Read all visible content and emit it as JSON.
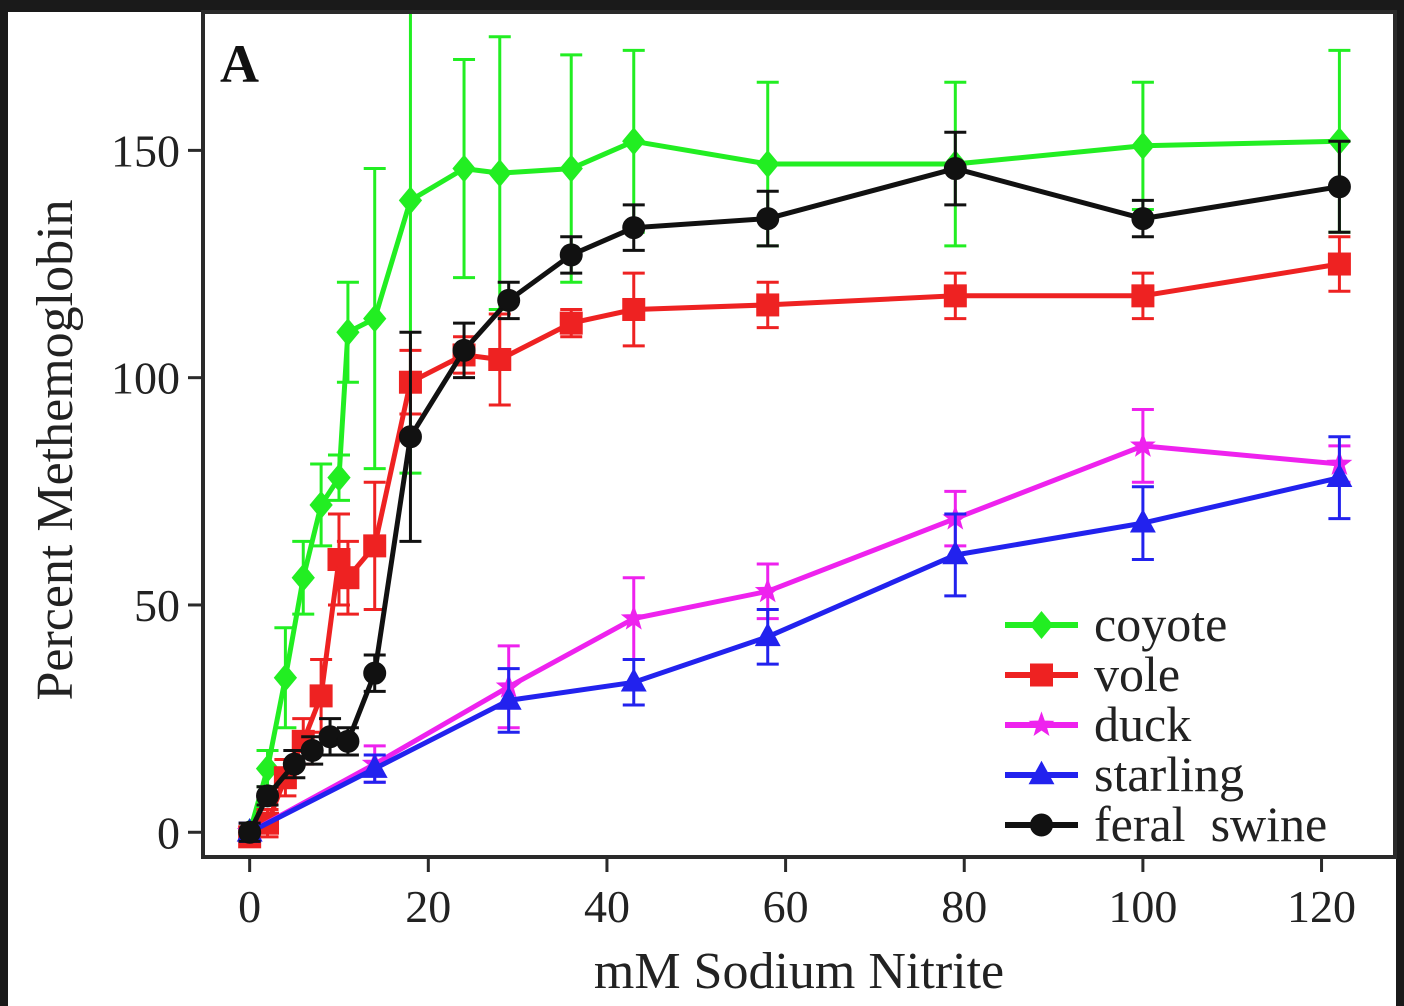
{
  "chart_data": {
    "type": "line",
    "panel_label": "A",
    "xlabel": "mM Sodium Nitrite",
    "ylabel": "Percent Methemoglobin",
    "xlim": [
      -5,
      128
    ],
    "ylim": [
      -5,
      180
    ],
    "xticks": [
      0,
      20,
      40,
      60,
      80,
      100,
      120
    ],
    "yticks": [
      0,
      50,
      100,
      150
    ],
    "grid": false,
    "legend_position": "bottom-right",
    "series": [
      {
        "name": "coyote",
        "color": "#22ee22",
        "marker": "diamond",
        "points": [
          {
            "x": 0,
            "y": 0,
            "err": 2
          },
          {
            "x": 2,
            "y": 14,
            "err": 4
          },
          {
            "x": 4,
            "y": 34,
            "err": 11
          },
          {
            "x": 6,
            "y": 56,
            "err": 8
          },
          {
            "x": 8,
            "y": 72,
            "err": 9
          },
          {
            "x": 10,
            "y": 78,
            "err": 5
          },
          {
            "x": 11,
            "y": 110,
            "err": 11
          },
          {
            "x": 14,
            "y": 113,
            "err": 33
          },
          {
            "x": 18,
            "y": 139,
            "err": 60
          },
          {
            "x": 24,
            "y": 146,
            "err": 24
          },
          {
            "x": 28,
            "y": 145,
            "err": 30
          },
          {
            "x": 36,
            "y": 146,
            "err": 25
          },
          {
            "x": 43,
            "y": 152,
            "err": 20
          },
          {
            "x": 58,
            "y": 147,
            "err": 18
          },
          {
            "x": 79,
            "y": 147,
            "err": 18
          },
          {
            "x": 100,
            "y": 151,
            "err": 14
          },
          {
            "x": 122,
            "y": 152,
            "err": 20
          }
        ]
      },
      {
        "name": "vole",
        "color": "#ee2222",
        "marker": "square",
        "points": [
          {
            "x": 0,
            "y": -1,
            "err": 2
          },
          {
            "x": 2,
            "y": 2,
            "err": 3
          },
          {
            "x": 4,
            "y": 12,
            "err": 4
          },
          {
            "x": 6,
            "y": 20,
            "err": 5
          },
          {
            "x": 8,
            "y": 30,
            "err": 8
          },
          {
            "x": 10,
            "y": 60,
            "err": 10
          },
          {
            "x": 11,
            "y": 56,
            "err": 8
          },
          {
            "x": 14,
            "y": 63,
            "err": 14
          },
          {
            "x": 18,
            "y": 99,
            "err": 7
          },
          {
            "x": 24,
            "y": 105,
            "err": 4
          },
          {
            "x": 28,
            "y": 104,
            "err": 10
          },
          {
            "x": 36,
            "y": 112,
            "err": 3
          },
          {
            "x": 43,
            "y": 115,
            "err": 8
          },
          {
            "x": 58,
            "y": 116,
            "err": 5
          },
          {
            "x": 79,
            "y": 118,
            "err": 5
          },
          {
            "x": 100,
            "y": 118,
            "err": 5
          },
          {
            "x": 122,
            "y": 125,
            "err": 6
          }
        ]
      },
      {
        "name": "duck",
        "color": "#ee22ee",
        "marker": "star",
        "points": [
          {
            "x": 0,
            "y": 0,
            "err": 2
          },
          {
            "x": 14,
            "y": 15,
            "err": 4
          },
          {
            "x": 29,
            "y": 32,
            "err": 9
          },
          {
            "x": 43,
            "y": 47,
            "err": 9
          },
          {
            "x": 58,
            "y": 53,
            "err": 6
          },
          {
            "x": 79,
            "y": 69,
            "err": 6
          },
          {
            "x": 100,
            "y": 85,
            "err": 8
          },
          {
            "x": 122,
            "y": 81,
            "err": 4
          }
        ]
      },
      {
        "name": "starling",
        "color": "#2222ee",
        "marker": "triangle",
        "points": [
          {
            "x": 0,
            "y": 0,
            "err": 2
          },
          {
            "x": 14,
            "y": 14,
            "err": 3
          },
          {
            "x": 29,
            "y": 29,
            "err": 7
          },
          {
            "x": 43,
            "y": 33,
            "err": 5
          },
          {
            "x": 58,
            "y": 43,
            "err": 6
          },
          {
            "x": 79,
            "y": 61,
            "err": 9
          },
          {
            "x": 100,
            "y": 68,
            "err": 8
          },
          {
            "x": 122,
            "y": 78,
            "err": 9
          }
        ]
      },
      {
        "name": "feral  swine",
        "color": "#111111",
        "marker": "circle",
        "points": [
          {
            "x": 0,
            "y": 0,
            "err": 2
          },
          {
            "x": 2,
            "y": 8,
            "err": 2
          },
          {
            "x": 5,
            "y": 15,
            "err": 3
          },
          {
            "x": 7,
            "y": 18,
            "err": 3
          },
          {
            "x": 9,
            "y": 21,
            "err": 4
          },
          {
            "x": 11,
            "y": 20,
            "err": 3
          },
          {
            "x": 14,
            "y": 35,
            "err": 4
          },
          {
            "x": 18,
            "y": 87,
            "err": 23
          },
          {
            "x": 24,
            "y": 106,
            "err": 6
          },
          {
            "x": 29,
            "y": 117,
            "err": 4
          },
          {
            "x": 36,
            "y": 127,
            "err": 4
          },
          {
            "x": 43,
            "y": 133,
            "err": 5
          },
          {
            "x": 58,
            "y": 135,
            "err": 6
          },
          {
            "x": 79,
            "y": 146,
            "err": 8
          },
          {
            "x": 100,
            "y": 135,
            "err": 4
          },
          {
            "x": 122,
            "y": 142,
            "err": 10
          }
        ]
      }
    ]
  }
}
